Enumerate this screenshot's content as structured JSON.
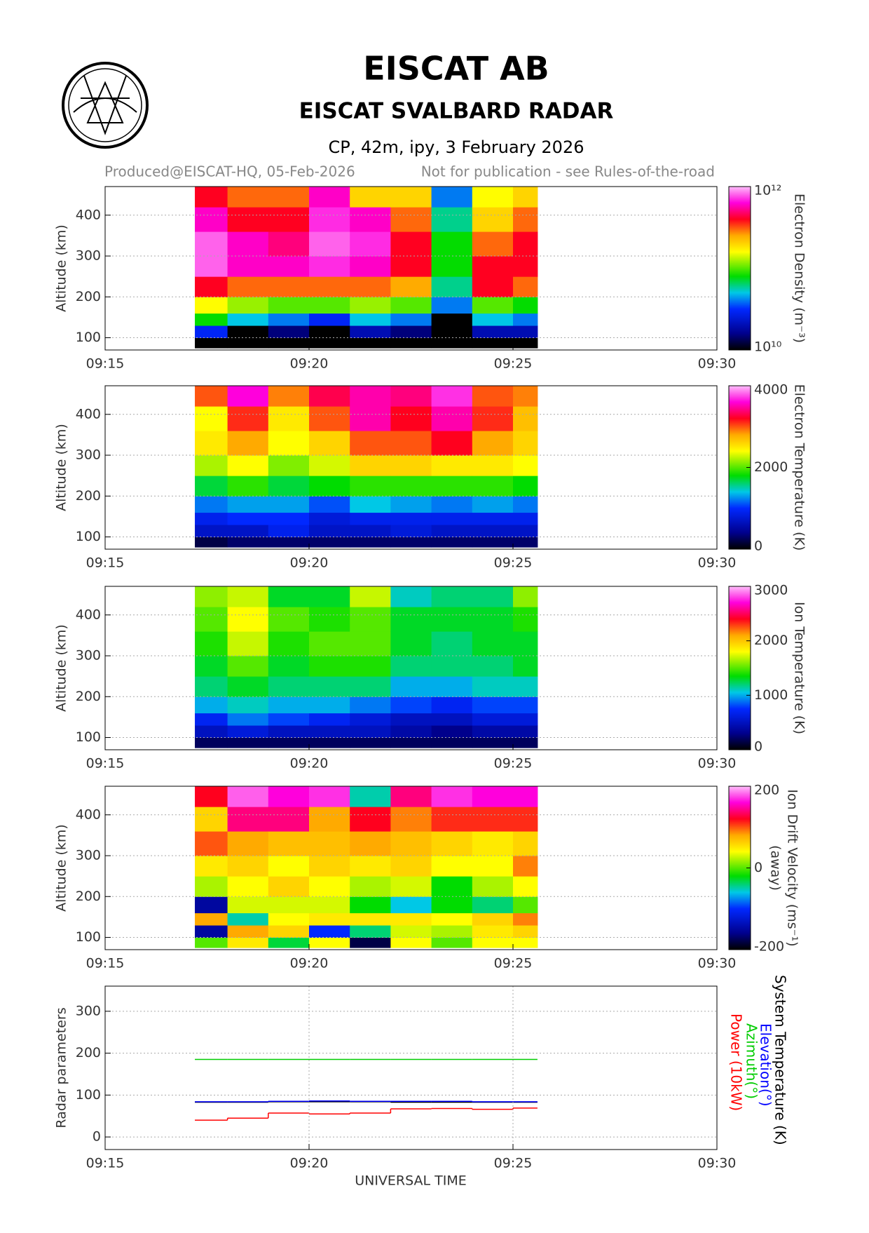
{
  "header": {
    "title": "EISCAT AB",
    "subtitle": "EISCAT SVALBARD RADAR",
    "experiment": "CP, 42m, ipy, 3 February 2026",
    "produced": "Produced@EISCAT-HQ, 05-Feb-2026",
    "notice": "Not for publication - see Rules-of-the-road"
  },
  "chart_data": [
    {
      "type": "heatmap",
      "ylabel": "Altitude (km)",
      "colorbar_label": [
        "Electron Density (m⁻³)"
      ],
      "clog": true,
      "clim": [
        10000000000.0,
        1000000000000.0
      ],
      "cticks": [
        {
          "value": 10000000000.0,
          "label": "10¹⁰"
        },
        {
          "value": 1000000000000.0,
          "label": "10¹²"
        }
      ],
      "xlim": [
        555,
        570
      ],
      "xticks": [
        {
          "value": 555,
          "label": "09:15"
        },
        {
          "value": 560,
          "label": "09:20"
        },
        {
          "value": 565,
          "label": "09:25"
        },
        {
          "value": 570,
          "label": "09:30"
        }
      ],
      "ylim": [
        70,
        470
      ],
      "yticks": [
        100,
        200,
        300,
        400
      ],
      "grid": true,
      "x_edges": [
        557.2,
        558,
        559,
        560,
        561,
        562,
        563,
        564,
        565,
        565.6
      ],
      "y_edges": [
        75,
        100,
        130,
        160,
        200,
        250,
        300,
        360,
        420,
        470
      ],
      "z": [
        [
          10000000000.0,
          30000000000.0,
          80000000000.0,
          160000000000.0,
          400000000000.0,
          800000000000.0,
          800000000000.0,
          600000000000.0,
          400000000000.0
        ],
        [
          10000000000.0,
          10000000000.0,
          50000000000.0,
          120000000000.0,
          300000000000.0,
          600000000000.0,
          600000000000.0,
          400000000000.0,
          300000000000.0
        ],
        [
          10000000000.0,
          15000000000.0,
          40000000000.0,
          100000000000.0,
          300000000000.0,
          600000000000.0,
          500000000000.0,
          400000000000.0,
          300000000000.0
        ],
        [
          10000000000.0,
          10000000000.0,
          30000000000.0,
          100000000000.0,
          300000000000.0,
          700000000000.0,
          800000000000.0,
          700000000000.0,
          600000000000.0
        ],
        [
          10000000000.0,
          20000000000.0,
          50000000000.0,
          120000000000.0,
          300000000000.0,
          600000000000.0,
          700000000000.0,
          600000000000.0,
          200000000000.0
        ],
        [
          10000000000.0,
          15000000000.0,
          40000000000.0,
          100000000000.0,
          250000000000.0,
          400000000000.0,
          400000000000.0,
          300000000000.0,
          200000000000.0
        ],
        [
          10000000000.0,
          10000000000.0,
          10000000000.0,
          40000000000.0,
          60000000000.0,
          80000000000.0,
          80000000000.0,
          60000000000.0,
          40000000000.0
        ],
        [
          10000000000.0,
          20000000000.0,
          50000000000.0,
          100000000000.0,
          400000000000.0,
          400000000000.0,
          300000000000.0,
          200000000000.0,
          160000000000.0
        ],
        [
          10000000000.0,
          20000000000.0,
          40000000000.0,
          80000000000.0,
          300000000000.0,
          400000000000.0,
          400000000000.0,
          300000000000.0,
          200000000000.0
        ]
      ]
    },
    {
      "type": "heatmap",
      "ylabel": "Altitude (km)",
      "colorbar_label": [
        "Electron Temperature (K)"
      ],
      "clog": false,
      "clim": [
        0,
        4000
      ],
      "cticks": [
        0,
        2000,
        4000
      ],
      "xlim": [
        555,
        570
      ],
      "xticks": [
        {
          "value": 555,
          "label": "09:15"
        },
        {
          "value": 560,
          "label": "09:20"
        },
        {
          "value": 565,
          "label": "09:25"
        },
        {
          "value": 570,
          "label": "09:30"
        }
      ],
      "ylim": [
        70,
        470
      ],
      "yticks": [
        100,
        200,
        300,
        400
      ],
      "grid": true,
      "x_edges": [
        557.2,
        558,
        559,
        560,
        561,
        562,
        563,
        564,
        565,
        565.6
      ],
      "y_edges": [
        75,
        100,
        130,
        160,
        200,
        250,
        300,
        360,
        420,
        470
      ],
      "z": [
        [
          200,
          700,
          900,
          1200,
          1700,
          2200,
          2500,
          2400,
          3000
        ],
        [
          300,
          700,
          1000,
          1300,
          1900,
          2400,
          2800,
          3100,
          3600
        ],
        [
          300,
          900,
          1000,
          1300,
          1700,
          2100,
          2400,
          2500,
          2900
        ],
        [
          300,
          700,
          800,
          1100,
          1800,
          2300,
          2600,
          3000,
          3300
        ],
        [
          300,
          700,
          900,
          1400,
          1900,
          2600,
          3000,
          3500,
          3500
        ],
        [
          300,
          800,
          900,
          1300,
          1900,
          2600,
          3000,
          3200,
          3400
        ],
        [
          300,
          700,
          900,
          1200,
          1900,
          2500,
          3200,
          3500,
          3700
        ],
        [
          300,
          700,
          900,
          1300,
          1900,
          2500,
          2800,
          3100,
          3000
        ],
        [
          300,
          700,
          900,
          1200,
          1800,
          2400,
          2600,
          2700,
          2900
        ]
      ]
    },
    {
      "type": "heatmap",
      "ylabel": "Altitude (km)",
      "colorbar_label": [
        "Ion Temperature (K)"
      ],
      "clog": false,
      "clim": [
        0,
        3000
      ],
      "cticks": [
        0,
        1000,
        2000,
        3000
      ],
      "xlim": [
        555,
        570
      ],
      "xticks": [
        {
          "value": 555,
          "label": "09:15"
        },
        {
          "value": 560,
          "label": "09:20"
        },
        {
          "value": 565,
          "label": "09:25"
        },
        {
          "value": 570,
          "label": "09:30"
        }
      ],
      "ylim": [
        70,
        470
      ],
      "yticks": [
        100,
        200,
        300,
        400
      ],
      "grid": true,
      "x_edges": [
        557.2,
        558,
        559,
        560,
        561,
        562,
        563,
        564,
        565,
        565.6
      ],
      "y_edges": [
        75,
        100,
        130,
        160,
        200,
        250,
        300,
        360,
        420,
        470
      ],
      "z": [
        [
          200,
          500,
          700,
          1000,
          1200,
          1300,
          1400,
          1500,
          1600
        ],
        [
          200,
          600,
          900,
          1100,
          1300,
          1500,
          1700,
          1800,
          1700
        ],
        [
          200,
          500,
          800,
          1000,
          1200,
          1300,
          1400,
          1500,
          1300
        ],
        [
          200,
          500,
          700,
          1000,
          1200,
          1400,
          1500,
          1400,
          1300
        ],
        [
          200,
          500,
          600,
          900,
          1200,
          1400,
          1500,
          1500,
          1700
        ],
        [
          200,
          400,
          500,
          800,
          1000,
          1200,
          1300,
          1300,
          1100
        ],
        [
          200,
          300,
          500,
          700,
          1000,
          1200,
          1200,
          1300,
          1200
        ],
        [
          200,
          400,
          600,
          800,
          1100,
          1200,
          1300,
          1300,
          1200
        ],
        [
          200,
          400,
          600,
          800,
          1100,
          1300,
          1300,
          1400,
          1600
        ]
      ]
    },
    {
      "type": "heatmap",
      "ylabel": "Altitude (km)",
      "colorbar_label": [
        "Ion Drift Velocity (ms⁻¹)",
        "(away)"
      ],
      "clog": false,
      "clim": [
        -200,
        200
      ],
      "cticks": [
        -200,
        0,
        200
      ],
      "xlim": [
        555,
        570
      ],
      "xticks": [
        {
          "value": 555,
          "label": "09:15"
        },
        {
          "value": 560,
          "label": "09:20"
        },
        {
          "value": 565,
          "label": "09:25"
        },
        {
          "value": 570,
          "label": "09:30"
        }
      ],
      "ylim": [
        70,
        470
      ],
      "yticks": [
        100,
        200,
        300,
        400
      ],
      "grid": true,
      "x_edges": [
        557.2,
        558,
        559,
        560,
        561,
        562,
        563,
        564,
        565,
        565.6
      ],
      "y_edges": [
        75,
        100,
        130,
        160,
        200,
        250,
        300,
        360,
        420,
        470
      ],
      "z": [
        [
          0,
          -150,
          80,
          -150,
          20,
          50,
          100,
          60,
          120
        ],
        [
          50,
          80,
          -50,
          30,
          40,
          60,
          80,
          140,
          180
        ],
        [
          -30,
          60,
          40,
          30,
          60,
          40,
          70,
          140,
          160
        ],
        [
          40,
          -100,
          50,
          30,
          40,
          60,
          70,
          80,
          170
        ],
        [
          -180,
          -40,
          50,
          -20,
          20,
          50,
          80,
          120,
          -50
        ],
        [
          40,
          30,
          50,
          -60,
          30,
          60,
          70,
          90,
          140
        ],
        [
          0,
          20,
          40,
          -20,
          -20,
          40,
          60,
          110,
          170
        ],
        [
          40,
          50,
          60,
          -40,
          20,
          40,
          50,
          110,
          160
        ],
        [
          40,
          60,
          90,
          0,
          40,
          90,
          60,
          110,
          160
        ]
      ]
    },
    {
      "type": "step",
      "ylabel": "Radar parameters",
      "xlabel": "UNIVERSAL TIME",
      "xlim": [
        555,
        570
      ],
      "xticks": [
        {
          "value": 555,
          "label": "09:15"
        },
        {
          "value": 560,
          "label": "09:20"
        },
        {
          "value": 565,
          "label": "09:25"
        },
        {
          "value": 570,
          "label": "09:30"
        }
      ],
      "ylim": [
        -30,
        360
      ],
      "yticks": [
        0,
        100,
        200,
        300
      ],
      "grid": true,
      "xgrid": true,
      "x_edges": [
        557.2,
        558,
        559,
        560,
        561,
        562,
        563,
        564,
        565,
        565.6
      ],
      "series": [
        {
          "name": "System Temperature (K)",
          "color": "#000000",
          "values": [
            83,
            83,
            84,
            84,
            84,
            83,
            83,
            83,
            83
          ]
        },
        {
          "name": "Elevation(°)",
          "color": "#0000ff",
          "values": [
            84,
            84,
            85,
            86,
            85,
            85,
            85,
            84,
            84
          ]
        },
        {
          "name": "Azimuth(°)",
          "color": "#00cc00",
          "values": [
            185,
            185,
            185,
            185,
            185,
            185,
            185,
            185,
            185
          ]
        },
        {
          "name": "Power (10kW)",
          "color": "#ff0000",
          "values": [
            40,
            45,
            57,
            55,
            57,
            67,
            68,
            66,
            69
          ]
        }
      ]
    }
  ]
}
